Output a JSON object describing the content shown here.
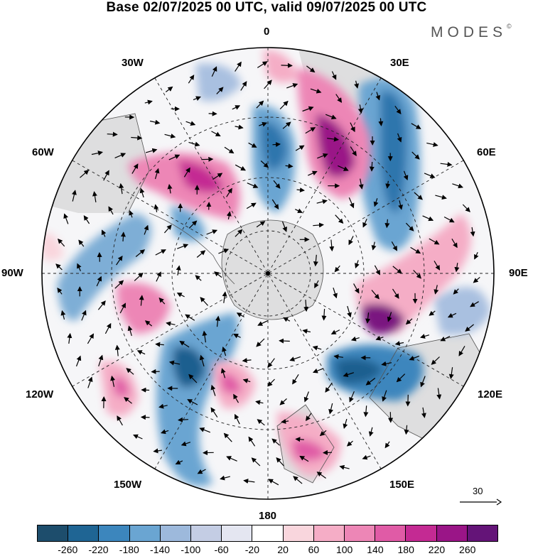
{
  "title": "Base 02/07/2025 00 UTC, valid 09/07/2025 00 UTC",
  "brand": {
    "text": "MODES",
    "mark": "©"
  },
  "map": {
    "projection": "polar stereographic (south pole)",
    "longitude_labels": {
      "top": "0",
      "upper_right_1": "30E",
      "upper_right_2": "60E",
      "right": "90E",
      "lower_right_1": "120E",
      "lower_right_2": "150E",
      "bottom": "180",
      "lower_left_2": "150W",
      "lower_left_1": "120W",
      "left": "90W",
      "upper_left_2": "60W",
      "upper_left_1": "30W"
    },
    "reference_vector_value": "30",
    "shading_colors": {
      "strong_positive": "#7a1380",
      "positive": "#e0559e",
      "weak_positive": "#f7c9d6",
      "strong_negative": "#1f5f8f",
      "negative": "#4f97c7",
      "weak_negative": "#c9d3e8",
      "land": "#dedede"
    }
  },
  "colorbar": {
    "colors": [
      "#1d4d6c",
      "#1f6594",
      "#3c86bd",
      "#6aa5d2",
      "#9db9dc",
      "#c4cde4",
      "#e4e6f1",
      "#ffffff",
      "#f9d6dd",
      "#f5adc6",
      "#ed86b6",
      "#e05ba6",
      "#c42a93",
      "#9a1587",
      "#641478"
    ],
    "tick_labels": [
      "-260",
      "-220",
      "-180",
      "-140",
      "-100",
      "-60",
      "-20",
      "20",
      "60",
      "100",
      "140",
      "180",
      "220",
      "260"
    ]
  }
}
